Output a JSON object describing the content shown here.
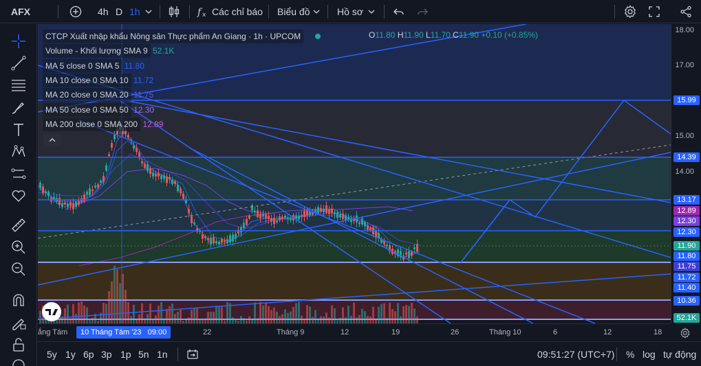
{
  "toolbar": {
    "symbol": "AFX",
    "intervals": [
      "4h",
      "D",
      "1h"
    ],
    "indicators_label": "Các chỉ báo",
    "chart_label": "Biểu đồ",
    "profile_label": "Hồ sơ"
  },
  "legend": {
    "title": "CTCP Xuất nhập khẩu Nông sản Thực phẩm An Giang · 1h · UPCOM",
    "ohlc": {
      "o": "11.80",
      "h": "11.90",
      "l": "11.70",
      "c": "11.90",
      "change": "+0.10 (+0.85%)"
    },
    "rows": [
      {
        "label": "Volume - Khối lượng SMA 9",
        "value": "52.1K",
        "color": "#26a69a"
      },
      {
        "label": "MA 5 close 0 SMA 5",
        "value": "11.80",
        "color": "#2962ff"
      },
      {
        "label": "MA 10 close 0 SMA 10",
        "value": "11.72",
        "color": "#2962ff"
      },
      {
        "label": "MA 20 close 0 SMA 20",
        "value": "11.75",
        "color": "#3f3fcf"
      },
      {
        "label": "MA 50 close 0 SMA 50",
        "value": "12.30",
        "color": "#7b3fe4"
      },
      {
        "label": "MA 200 close 0 SMA 200",
        "value": "12.89",
        "color": "#9c27b0"
      }
    ]
  },
  "price_axis": {
    "ticks": [
      "18.00",
      "17.00",
      "15.00",
      "14.00"
    ],
    "badges": [
      {
        "value": "15.99",
        "color": "#2962ff"
      },
      {
        "value": "14.39",
        "color": "#2962ff"
      },
      {
        "value": "13.17",
        "color": "#2962ff"
      },
      {
        "value": "12.89",
        "color": "#9c27b0"
      },
      {
        "value": "12.30",
        "color": "#7b3fe4"
      },
      {
        "value": "12.30",
        "color": "#2962ff"
      },
      {
        "value": "11.90",
        "color": "#26a69a"
      },
      {
        "value": "11.80",
        "color": "#2962ff"
      },
      {
        "value": "11.75",
        "color": "#3f3fcf"
      },
      {
        "value": "11.72",
        "color": "#2962ff"
      },
      {
        "value": "11.40",
        "color": "#2962ff"
      },
      {
        "value": "10.36",
        "color": "#2962ff"
      },
      {
        "value": "52.1K",
        "color": "#26a69a"
      }
    ]
  },
  "time_axis": {
    "labels": [
      "ắng Tám",
      "22",
      "Tháng 9",
      "12",
      "19",
      "26",
      "Tháng 10",
      "6",
      "12",
      "18"
    ],
    "highlight": "10 Tháng Tám '23   09:00"
  },
  "bottom": {
    "ranges": [
      "5y",
      "1y",
      "6p",
      "3p",
      "1p",
      "5n",
      "1n"
    ],
    "clock": "09:51:27 (UTC+7)",
    "percent": "%",
    "log": "log",
    "auto": "tự động"
  },
  "colors": {
    "up": "#26a69a",
    "down": "#ef5350",
    "line": "#2962ff"
  }
}
